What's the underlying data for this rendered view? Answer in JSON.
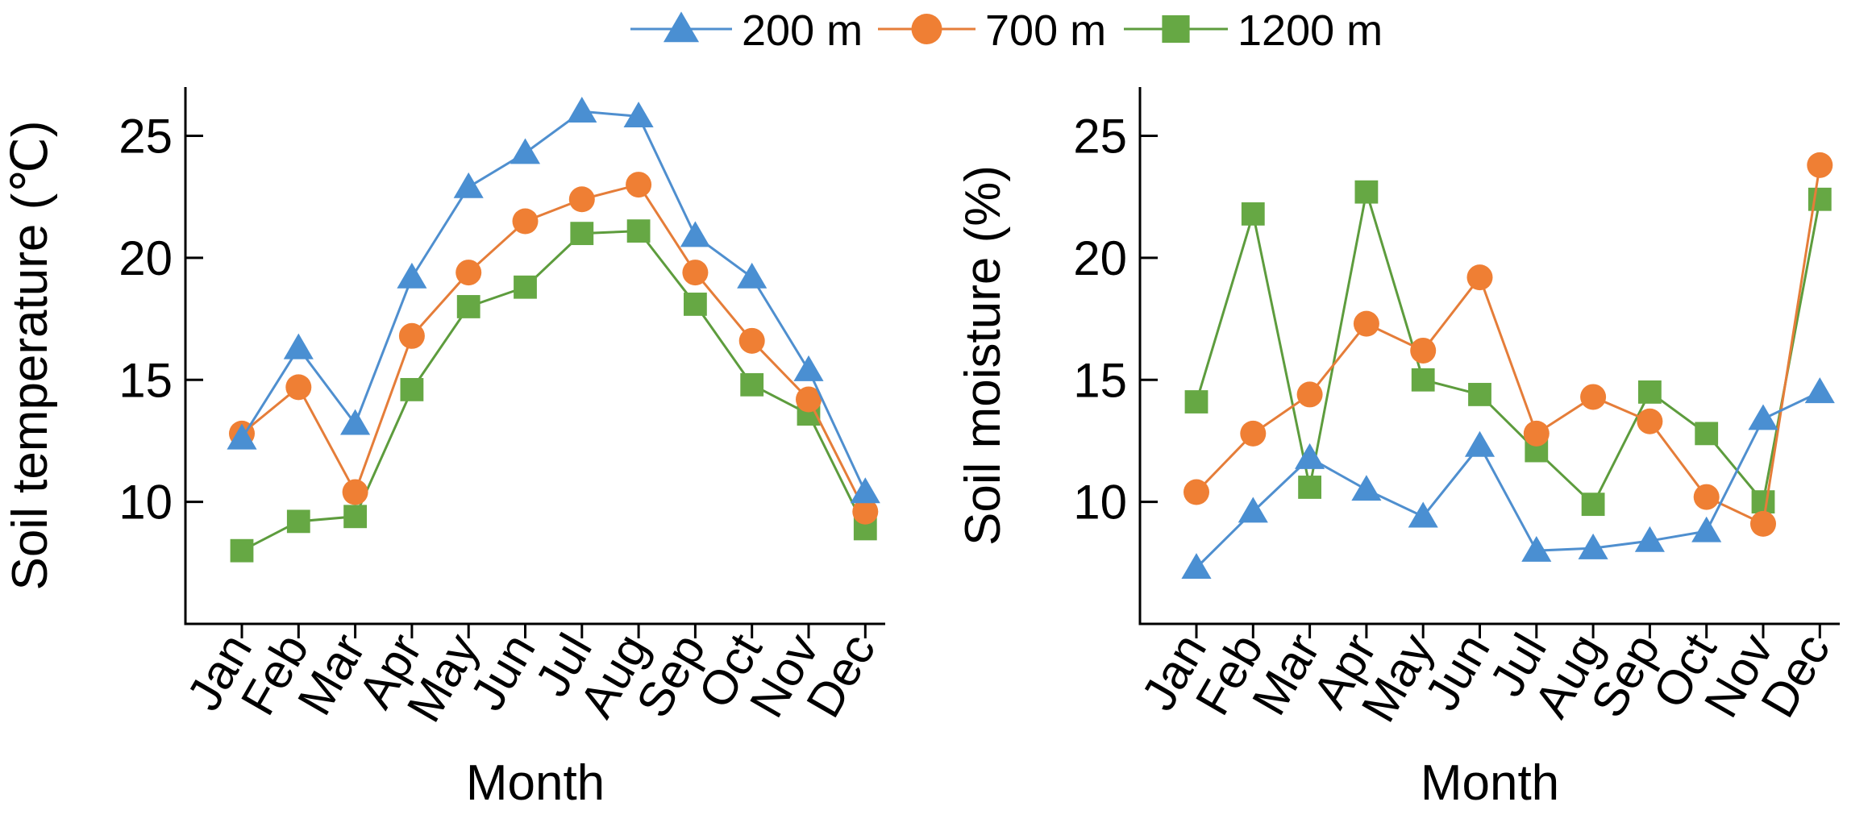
{
  "legend": [
    {
      "series": "200 m",
      "marker": "triangle"
    },
    {
      "series": "700 m",
      "marker": "circle"
    },
    {
      "series": "1200 m",
      "marker": "square"
    }
  ],
  "colors": {
    "200 m": {
      "line": "#4f8fcf",
      "fill": "#4a8fd2"
    },
    "700 m": {
      "line": "#e57d39",
      "fill": "#ef7f34"
    },
    "1200 m": {
      "line": "#5d9c3d",
      "fill": "#66a844"
    }
  },
  "chart_data": [
    {
      "type": "line",
      "title": "",
      "xlabel": "Month",
      "ylabel": "Soil temperature (℃)",
      "categories": [
        "Jan",
        "Feb",
        "Mar",
        "Apr",
        "May",
        "Jun",
        "Jul",
        "Aug",
        "Sep",
        "Oct",
        "Nov",
        "Dec"
      ],
      "ylim": [
        5,
        27
      ],
      "yticks": [
        10,
        15,
        20,
        25
      ],
      "series": [
        {
          "name": "200 m",
          "marker": "triangle",
          "values": [
            12.6,
            16.3,
            13.2,
            19.2,
            22.9,
            24.3,
            26.0,
            25.8,
            20.9,
            19.2,
            15.4,
            10.4
          ]
        },
        {
          "name": "700 m",
          "marker": "circle",
          "values": [
            12.8,
            14.7,
            10.4,
            16.8,
            19.4,
            21.5,
            22.4,
            23.0,
            19.4,
            16.6,
            14.2,
            9.6
          ]
        },
        {
          "name": "1200 m",
          "marker": "square",
          "values": [
            8.0,
            9.2,
            9.4,
            14.6,
            18.0,
            18.8,
            21.0,
            21.1,
            18.1,
            14.8,
            13.6,
            8.9
          ]
        }
      ]
    },
    {
      "type": "line",
      "title": "",
      "xlabel": "Month",
      "ylabel": "Soil moisture (%)",
      "categories": [
        "Jan",
        "Feb",
        "Mar",
        "Apr",
        "May",
        "Jun",
        "Jul",
        "Aug",
        "Sep",
        "Oct",
        "Nov",
        "Dec"
      ],
      "ylim": [
        5,
        27
      ],
      "yticks": [
        10,
        15,
        20,
        25
      ],
      "series": [
        {
          "name": "200 m",
          "marker": "triangle",
          "values": [
            7.3,
            9.6,
            11.8,
            10.5,
            9.4,
            12.3,
            8.0,
            8.1,
            8.4,
            8.8,
            13.4,
            14.5
          ]
        },
        {
          "name": "700 m",
          "marker": "circle",
          "values": [
            10.4,
            12.8,
            14.4,
            17.3,
            16.2,
            19.2,
            12.8,
            14.3,
            13.3,
            10.2,
            9.1,
            23.8
          ]
        },
        {
          "name": "1200 m",
          "marker": "square",
          "values": [
            14.1,
            21.8,
            10.6,
            22.7,
            15.0,
            14.4,
            12.1,
            9.9,
            14.5,
            12.8,
            10.0,
            22.4
          ]
        }
      ]
    }
  ]
}
